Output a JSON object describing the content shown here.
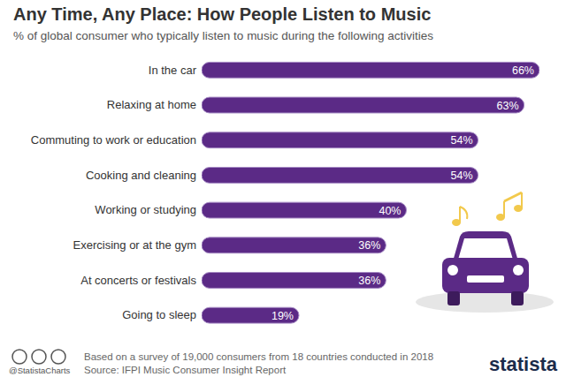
{
  "chart_data": {
    "type": "bar",
    "title": "Any Time, Any Place: How People Listen to Music",
    "subtitle": "% of global consumer who typically listen to music during the following activities",
    "categories": [
      "In the car",
      "Relaxing at home",
      "Commuting to work or education",
      "Cooking and cleaning",
      "Working or studying",
      "Exercising or at the gym",
      "At concerts or festivals",
      "Going to sleep"
    ],
    "values": [
      66,
      63,
      54,
      54,
      40,
      36,
      36,
      19
    ],
    "value_labels": [
      "66%",
      "63%",
      "54%",
      "54%",
      "40%",
      "36%",
      "36%",
      "19%"
    ],
    "color": "#5b2a86",
    "orientation": "horizontal",
    "data_labels": true,
    "tick_labels": "y",
    "grid": false,
    "xlim": [
      0,
      66
    ],
    "note": "Based on a survey of 19,000 consumers from 18 countries conducted in 2018",
    "source": "Source: IFPI Music Consumer Insight Report",
    "credit": "@StatistaCharts",
    "brand": "statista"
  }
}
